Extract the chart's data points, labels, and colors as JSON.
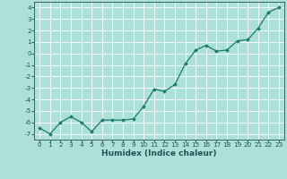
{
  "x": [
    0,
    1,
    2,
    3,
    4,
    5,
    6,
    7,
    8,
    9,
    10,
    11,
    12,
    13,
    14,
    15,
    16,
    17,
    18,
    19,
    20,
    21,
    22,
    23
  ],
  "y": [
    -6.5,
    -7.0,
    -6.0,
    -5.5,
    -6.0,
    -6.8,
    -5.8,
    -5.8,
    -5.8,
    -5.7,
    -4.6,
    -3.1,
    -3.3,
    -2.7,
    -0.9,
    0.3,
    0.7,
    0.2,
    0.3,
    1.1,
    1.2,
    2.2,
    3.6,
    4.0
  ],
  "line_color": "#1a7a6e",
  "marker": "D",
  "marker_size": 2.0,
  "bg_color": "#ade0d8",
  "grid_color": "#ffffff",
  "grid_linewidth": 0.6,
  "xlabel": "Humidex (Indice chaleur)",
  "ylim": [
    -7.5,
    4.5
  ],
  "xlim": [
    -0.5,
    23.5
  ],
  "yticks": [
    -7,
    -6,
    -5,
    -4,
    -3,
    -2,
    -1,
    0,
    1,
    2,
    3,
    4
  ],
  "xticks": [
    0,
    1,
    2,
    3,
    4,
    5,
    6,
    7,
    8,
    9,
    10,
    11,
    12,
    13,
    14,
    15,
    16,
    17,
    18,
    19,
    20,
    21,
    22,
    23
  ],
  "tick_fontsize": 5.2,
  "label_fontsize": 6.5,
  "line_width": 0.9
}
